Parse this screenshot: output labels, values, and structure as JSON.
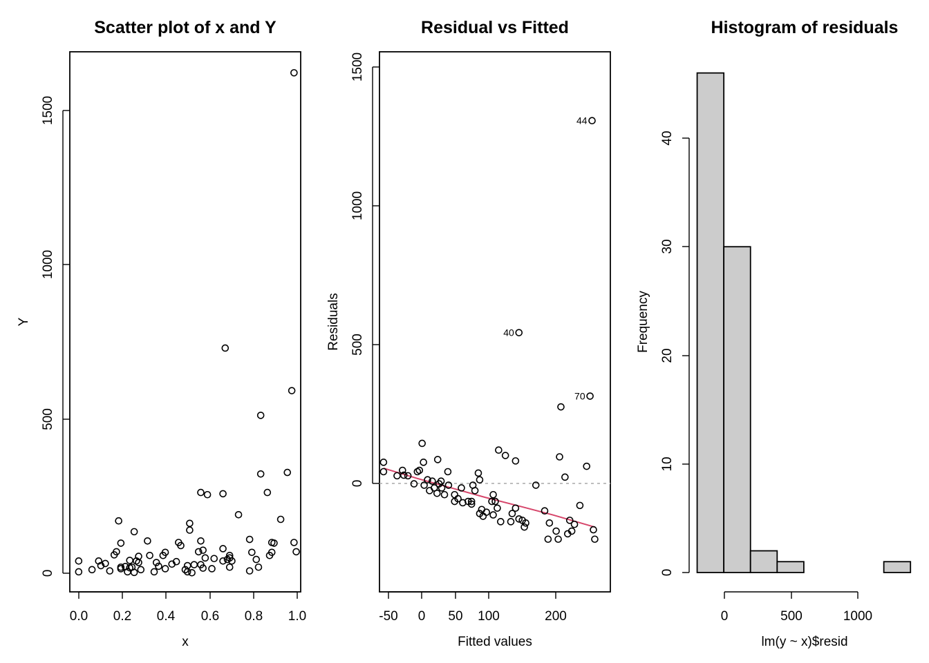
{
  "colors": {
    "lowess": "#d6456a",
    "bar_fill": "#cccccc",
    "zero_line": "#a9a9a9"
  },
  "chart_data": [
    {
      "type": "scatter",
      "title": "Scatter plot of x and Y",
      "xlabel": "x",
      "ylabel": "Y",
      "xlim": [
        -0.04,
        1.0
      ],
      "ylim": [
        -60,
        1690
      ],
      "x_ticks": [
        "0.0",
        "0.2",
        "0.4",
        "0.6",
        "0.8",
        "1.0"
      ],
      "y_ticks": [
        "0",
        "500",
        "1000",
        "1500"
      ],
      "points": [
        [
          0.0,
          40
        ],
        [
          0.0,
          5
        ],
        [
          0.06,
          12
        ],
        [
          0.09,
          40
        ],
        [
          0.1,
          25
        ],
        [
          0.12,
          32
        ],
        [
          0.14,
          8
        ],
        [
          0.16,
          60
        ],
        [
          0.17,
          70
        ],
        [
          0.18,
          170
        ],
        [
          0.19,
          98
        ],
        [
          0.19,
          20
        ],
        [
          0.19,
          15
        ],
        [
          0.21,
          22
        ],
        [
          0.22,
          5
        ],
        [
          0.23,
          42
        ],
        [
          0.23,
          18
        ],
        [
          0.24,
          20
        ],
        [
          0.25,
          135
        ],
        [
          0.25,
          3
        ],
        [
          0.26,
          40
        ],
        [
          0.27,
          35
        ],
        [
          0.27,
          55
        ],
        [
          0.28,
          12
        ],
        [
          0.31,
          105
        ],
        [
          0.32,
          58
        ],
        [
          0.34,
          5
        ],
        [
          0.35,
          35
        ],
        [
          0.36,
          23
        ],
        [
          0.38,
          58
        ],
        [
          0.39,
          68
        ],
        [
          0.39,
          15
        ],
        [
          0.42,
          30
        ],
        [
          0.44,
          38
        ],
        [
          0.45,
          100
        ],
        [
          0.46,
          90
        ],
        [
          0.48,
          12
        ],
        [
          0.49,
          25
        ],
        [
          0.49,
          5
        ],
        [
          0.5,
          162
        ],
        [
          0.5,
          140
        ],
        [
          0.51,
          2
        ],
        [
          0.52,
          28
        ],
        [
          0.54,
          70
        ],
        [
          0.55,
          262
        ],
        [
          0.55,
          105
        ],
        [
          0.55,
          28
        ],
        [
          0.56,
          17
        ],
        [
          0.56,
          75
        ],
        [
          0.57,
          50
        ],
        [
          0.58,
          255
        ],
        [
          0.6,
          15
        ],
        [
          0.61,
          48
        ],
        [
          0.65,
          258
        ],
        [
          0.65,
          80
        ],
        [
          0.65,
          40
        ],
        [
          0.66,
          730
        ],
        [
          0.67,
          45
        ],
        [
          0.68,
          20
        ],
        [
          0.68,
          58
        ],
        [
          0.68,
          50
        ],
        [
          0.69,
          40
        ],
        [
          0.72,
          190
        ],
        [
          0.77,
          110
        ],
        [
          0.77,
          8
        ],
        [
          0.78,
          68
        ],
        [
          0.8,
          45
        ],
        [
          0.81,
          20
        ],
        [
          0.82,
          322
        ],
        [
          0.82,
          512
        ],
        [
          0.85,
          262
        ],
        [
          0.86,
          58
        ],
        [
          0.87,
          100
        ],
        [
          0.87,
          68
        ],
        [
          0.88,
          98
        ],
        [
          0.91,
          175
        ],
        [
          0.94,
          327
        ],
        [
          0.96,
          592
        ],
        [
          0.97,
          1622
        ],
        [
          0.97,
          100
        ],
        [
          0.98,
          70
        ]
      ]
    },
    {
      "type": "scatter",
      "title": "Residual vs Fitted",
      "xlabel": "Fitted values",
      "ylabel": "Residuals",
      "xlim": [
        -56,
        285
      ],
      "ylim": [
        -390,
        1610
      ],
      "x_ticks": [
        "-50",
        "0",
        "50",
        "100",
        "200"
      ],
      "y_ticks": [
        "0",
        "500",
        "1000",
        "1500"
      ],
      "points": [
        [
          -50,
          90
        ],
        [
          -50,
          55
        ],
        [
          -30,
          40
        ],
        [
          -22,
          60
        ],
        [
          -20,
          42
        ],
        [
          -14,
          40
        ],
        [
          -5,
          10
        ],
        [
          0,
          55
        ],
        [
          3,
          60
        ],
        [
          7,
          160
        ],
        [
          9,
          90
        ],
        [
          10,
          5
        ],
        [
          15,
          25
        ],
        [
          18,
          -15
        ],
        [
          22,
          20
        ],
        [
          25,
          -5
        ],
        [
          29,
          -25
        ],
        [
          30,
          100
        ],
        [
          32,
          10
        ],
        [
          35,
          20
        ],
        [
          36,
          -5
        ],
        [
          40,
          -30
        ],
        [
          45,
          55
        ],
        [
          46,
          5
        ],
        [
          55,
          -55
        ],
        [
          55,
          -30
        ],
        [
          60,
          -45
        ],
        [
          65,
          -5
        ],
        [
          67,
          -60
        ],
        [
          75,
          -55
        ],
        [
          80,
          -55
        ],
        [
          80,
          -65
        ],
        [
          82,
          5
        ],
        [
          85,
          -15
        ],
        [
          90,
          50
        ],
        [
          92,
          -100
        ],
        [
          92,
          25
        ],
        [
          95,
          -85
        ],
        [
          97,
          -110
        ],
        [
          102,
          -95
        ],
        [
          110,
          -55
        ],
        [
          112,
          -30
        ],
        [
          112,
          -105
        ],
        [
          115,
          -55
        ],
        [
          118,
          -80
        ],
        [
          120,
          135
        ],
        [
          123,
          -130
        ],
        [
          130,
          115
        ],
        [
          138,
          -130
        ],
        [
          140,
          -100
        ],
        [
          145,
          -80
        ],
        [
          145,
          95
        ],
        [
          150,
          -120
        ],
        [
          155,
          -125
        ],
        [
          158,
          -150
        ],
        [
          160,
          -135
        ],
        [
          175,
          5
        ],
        [
          188,
          -90
        ],
        [
          193,
          -195
        ],
        [
          195,
          -135
        ],
        [
          205,
          -165
        ],
        [
          208,
          -195
        ],
        [
          210,
          110
        ],
        [
          212,
          295
        ],
        [
          218,
          35
        ],
        [
          222,
          -175
        ],
        [
          225,
          -125
        ],
        [
          228,
          -165
        ],
        [
          232,
          -140
        ],
        [
          240,
          -70
        ],
        [
          250,
          75
        ],
        [
          255,
          335
        ],
        [
          258,
          1355
        ],
        [
          260,
          -160
        ],
        [
          262,
          -195
        ],
        [
          150,
          570
        ]
      ],
      "labels": [
        {
          "text": "44",
          "x": 258,
          "y": 1355
        },
        {
          "text": "40",
          "x": 150,
          "y": 570
        },
        {
          "text": "70",
          "x": 255,
          "y": 335
        }
      ],
      "lowess": [
        [
          -50,
          68
        ],
        [
          0,
          30
        ],
        [
          50,
          -5
        ],
        [
          100,
          -40
        ],
        [
          150,
          -72
        ],
        [
          200,
          -105
        ],
        [
          262,
          -150
        ]
      ]
    },
    {
      "type": "bar",
      "title": "Histogram of residuals",
      "xlabel": "lm(y ~ x)$resid",
      "ylabel": "Frequency",
      "xlim": [
        -260,
        1430
      ],
      "ylim": [
        0,
        48.5
      ],
      "x_ticks": [
        "0",
        "500",
        "1000"
      ],
      "y_ticks": [
        "0",
        "10",
        "20",
        "30",
        "40"
      ],
      "bins": [
        [
          -200,
          0,
          46
        ],
        [
          0,
          200,
          30
        ],
        [
          200,
          400,
          2
        ],
        [
          400,
          600,
          1
        ],
        [
          600,
          800,
          0
        ],
        [
          800,
          1000,
          0
        ],
        [
          1000,
          1200,
          0
        ],
        [
          1200,
          1400,
          1
        ]
      ]
    }
  ]
}
